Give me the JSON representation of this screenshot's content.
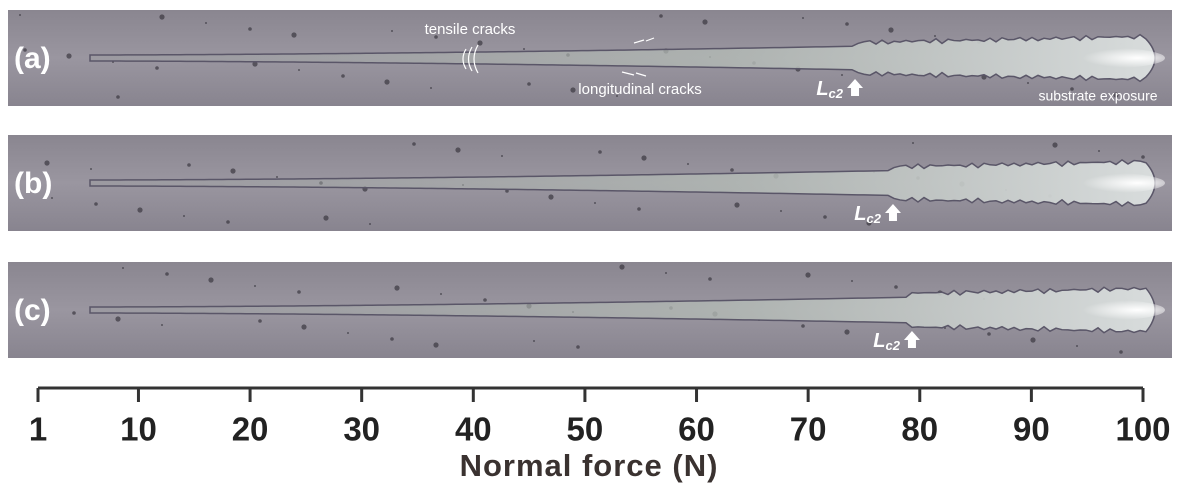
{
  "figure": {
    "panels": [
      {
        "label": "(a)",
        "lc2_label": {
          "main": "L",
          "sub": "c2"
        },
        "lc2_force": 74.2,
        "annotations": [
          "tensile cracks",
          "longitudinal cracks",
          "substrate exposure"
        ]
      },
      {
        "label": "(b)",
        "lc2_label": {
          "main": "L",
          "sub": "c2"
        },
        "lc2_force": 77.6
      },
      {
        "label": "(c)",
        "lc2_label": {
          "main": "L",
          "sub": "c2"
        },
        "lc2_force": 79.3
      }
    ],
    "xlim": [
      1,
      100
    ],
    "xticks": [
      1,
      10,
      20,
      30,
      40,
      50,
      60,
      70,
      80,
      90,
      100
    ],
    "xlabel": "Normal force (N)"
  }
}
